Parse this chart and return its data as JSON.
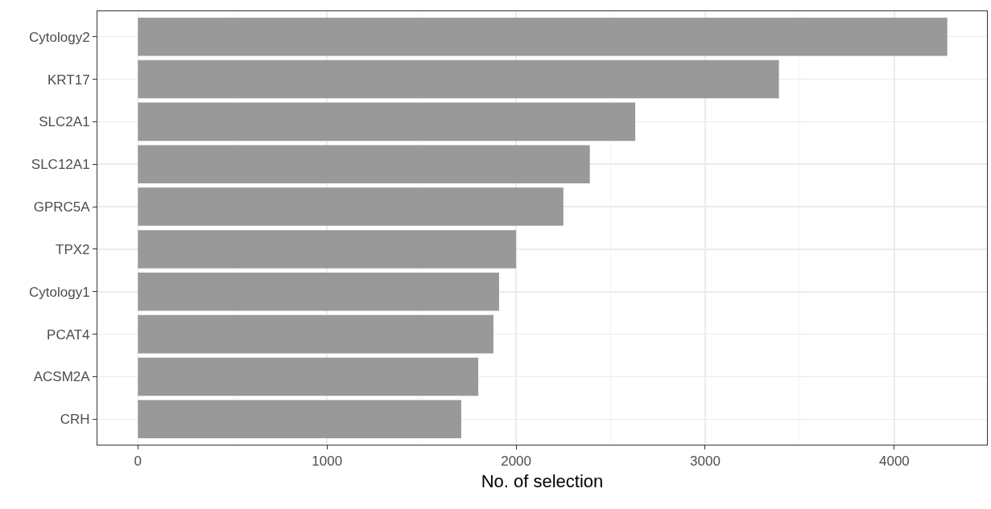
{
  "chart_data": {
    "type": "bar",
    "orientation": "horizontal",
    "xlabel": "No. of selection",
    "categories": [
      "Cytology2",
      "KRT17",
      "SLC2A1",
      "SLC12A1",
      "GPRC5A",
      "TPX2",
      "Cytology1",
      "PCAT4",
      "ACSM2A",
      "CRH"
    ],
    "values": [
      4280,
      3390,
      2630,
      2390,
      2250,
      2000,
      1910,
      1880,
      1800,
      1710
    ],
    "color": "#999999",
    "xlim": [
      -214,
      4490
    ],
    "xticks": [
      0,
      1000,
      2000,
      3000,
      4000
    ],
    "grid": true
  }
}
